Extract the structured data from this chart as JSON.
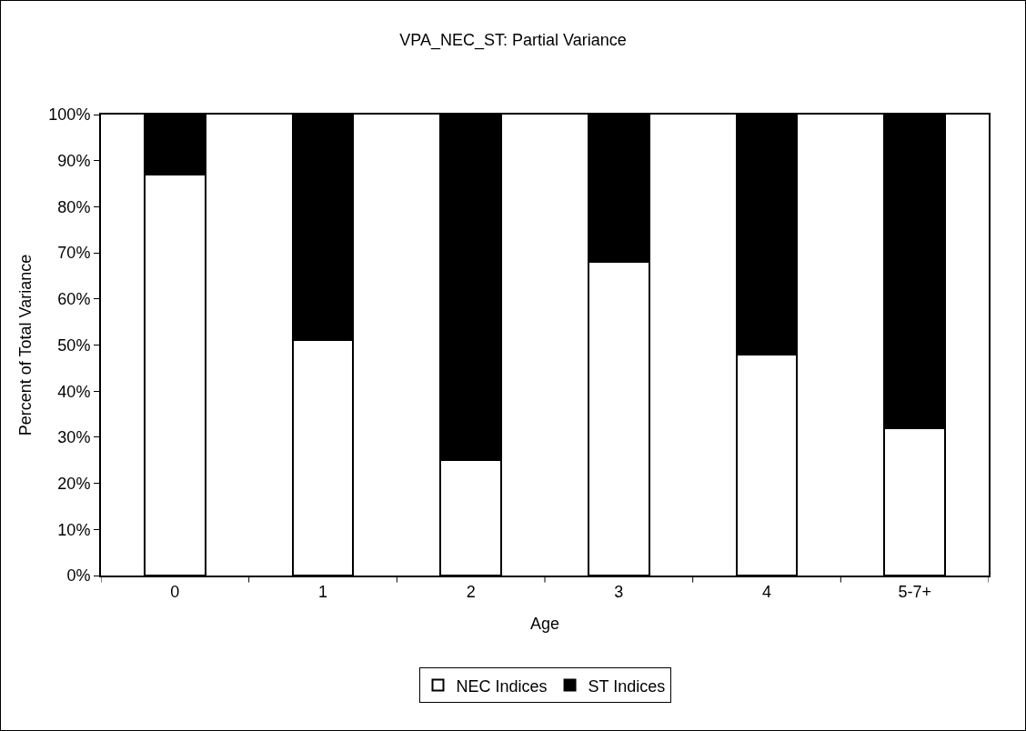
{
  "chart_data": {
    "type": "bar",
    "title": "VPA_NEC_ST: Partial Variance",
    "xlabel": "Age",
    "ylabel": "Percent of Total Variance",
    "categories": [
      "0",
      "1",
      "2",
      "3",
      "4",
      "5-7+"
    ],
    "series": [
      {
        "name": "NEC Indices",
        "color": "#ffffff",
        "values": [
          87,
          51,
          25,
          68,
          48,
          32
        ]
      },
      {
        "name": "ST Indices",
        "color": "#000000",
        "values": [
          13,
          49,
          75,
          32,
          52,
          68
        ]
      }
    ],
    "stacked": true,
    "ylim": [
      0,
      100
    ],
    "yticks": [
      {
        "value": 0,
        "label": "0%"
      },
      {
        "value": 10,
        "label": "10%"
      },
      {
        "value": 20,
        "label": "20%"
      },
      {
        "value": 30,
        "label": "30%"
      },
      {
        "value": 40,
        "label": "40%"
      },
      {
        "value": 50,
        "label": "50%"
      },
      {
        "value": 60,
        "label": "60%"
      },
      {
        "value": 70,
        "label": "70%"
      },
      {
        "value": 80,
        "label": "80%"
      },
      {
        "value": 90,
        "label": "90%"
      },
      {
        "value": 100,
        "label": "100%"
      }
    ],
    "grid": false,
    "legend": "bottom"
  }
}
